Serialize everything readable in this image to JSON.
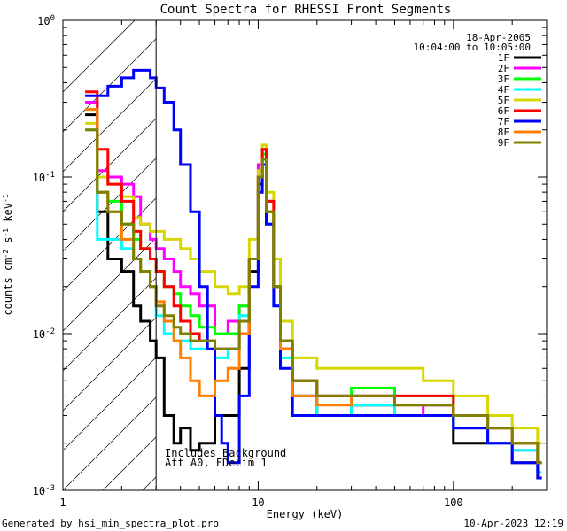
{
  "chart_data": {
    "type": "line",
    "title": "Count Spectra for RHESSI Front Segments",
    "xlabel": "Energy (keV)",
    "ylabel": "counts cm^-2 s^-1 keV^-1",
    "ylabel_parts": {
      "base": "counts cm",
      "exp1": "-2",
      "mid": " s",
      "exp2": "-1",
      "unit": " keV",
      "exp3": "-1"
    },
    "x_scale": "log",
    "y_scale": "log",
    "xlim": [
      1,
      300
    ],
    "ylim": [
      0.001,
      1
    ],
    "x_ticks": [
      {
        "value": 1,
        "label": "1"
      },
      {
        "value": 10,
        "label": "10"
      },
      {
        "value": 100,
        "label": "100"
      }
    ],
    "y_ticks": [
      {
        "value": 1,
        "base": "10",
        "exp": "0"
      },
      {
        "value": 0.1,
        "base": "10",
        "exp": "-1"
      },
      {
        "value": 0.01,
        "base": "10",
        "exp": "-2"
      },
      {
        "value": 0.001,
        "base": "10",
        "exp": "-3"
      }
    ],
    "legend_position": "top-right",
    "date": "18-Apr-2005",
    "time_range": "10:04:00 to 10:05:00",
    "hatched_region_xmax": 3,
    "annotations": [
      "Includes Background",
      "Att A0, FDecim 1"
    ],
    "series": [
      {
        "name": "1F",
        "color": "#000000",
        "points": [
          [
            1.3,
            0.25
          ],
          [
            1.5,
            0.06
          ],
          [
            1.7,
            0.03
          ],
          [
            2.0,
            0.025
          ],
          [
            2.3,
            0.015
          ],
          [
            2.5,
            0.012
          ],
          [
            2.8,
            0.009
          ],
          [
            3.0,
            0.007
          ],
          [
            3.3,
            0.003
          ],
          [
            3.7,
            0.002
          ],
          [
            4.0,
            0.0025
          ],
          [
            4.5,
            0.0018
          ],
          [
            5.0,
            0.002
          ],
          [
            6.0,
            0.003
          ],
          [
            7.0,
            0.003
          ],
          [
            8.0,
            0.006
          ],
          [
            9.0,
            0.025
          ],
          [
            10.0,
            0.09
          ],
          [
            10.5,
            0.12
          ],
          [
            11.0,
            0.06
          ],
          [
            12.0,
            0.02
          ],
          [
            13.0,
            0.008
          ],
          [
            15.0,
            0.004
          ],
          [
            20.0,
            0.003
          ],
          [
            30.0,
            0.0035
          ],
          [
            50.0,
            0.003
          ],
          [
            70.0,
            0.003
          ],
          [
            100.0,
            0.002
          ],
          [
            150.0,
            0.002
          ],
          [
            200.0,
            0.0015
          ],
          [
            270.0,
            0.0012
          ]
        ]
      },
      {
        "name": "2F",
        "color": "#ff00ff",
        "points": [
          [
            1.3,
            0.3
          ],
          [
            1.5,
            0.11
          ],
          [
            1.7,
            0.1
          ],
          [
            2.0,
            0.09
          ],
          [
            2.3,
            0.075
          ],
          [
            2.5,
            0.05
          ],
          [
            2.8,
            0.04
          ],
          [
            3.0,
            0.035
          ],
          [
            3.3,
            0.03
          ],
          [
            3.7,
            0.025
          ],
          [
            4.0,
            0.02
          ],
          [
            4.5,
            0.018
          ],
          [
            5.0,
            0.015
          ],
          [
            6.0,
            0.01
          ],
          [
            7.0,
            0.012
          ],
          [
            8.0,
            0.015
          ],
          [
            9.0,
            0.03
          ],
          [
            10.0,
            0.12
          ],
          [
            10.5,
            0.15
          ],
          [
            11.0,
            0.07
          ],
          [
            12.0,
            0.02
          ],
          [
            13.0,
            0.009
          ],
          [
            15.0,
            0.005
          ],
          [
            20.0,
            0.004
          ],
          [
            30.0,
            0.004
          ],
          [
            50.0,
            0.003
          ],
          [
            70.0,
            0.0035
          ],
          [
            100.0,
            0.0025
          ],
          [
            150.0,
            0.002
          ],
          [
            200.0,
            0.0018
          ],
          [
            270.0,
            0.0015
          ]
        ]
      },
      {
        "name": "3F",
        "color": "#00ff00",
        "points": [
          [
            1.3,
            0.27
          ],
          [
            1.5,
            0.08
          ],
          [
            1.7,
            0.07
          ],
          [
            2.0,
            0.05
          ],
          [
            2.3,
            0.04
          ],
          [
            2.5,
            0.035
          ],
          [
            2.8,
            0.03
          ],
          [
            3.0,
            0.025
          ],
          [
            3.3,
            0.02
          ],
          [
            3.7,
            0.018
          ],
          [
            4.0,
            0.015
          ],
          [
            4.5,
            0.013
          ],
          [
            5.0,
            0.011
          ],
          [
            6.0,
            0.01
          ],
          [
            7.0,
            0.01
          ],
          [
            8.0,
            0.015
          ],
          [
            9.0,
            0.03
          ],
          [
            10.0,
            0.1
          ],
          [
            10.5,
            0.14
          ],
          [
            11.0,
            0.06
          ],
          [
            12.0,
            0.02
          ],
          [
            13.0,
            0.009
          ],
          [
            15.0,
            0.005
          ],
          [
            20.0,
            0.004
          ],
          [
            30.0,
            0.0045
          ],
          [
            50.0,
            0.004
          ],
          [
            70.0,
            0.004
          ],
          [
            100.0,
            0.003
          ],
          [
            150.0,
            0.0025
          ],
          [
            200.0,
            0.002
          ],
          [
            270.0,
            0.0015
          ]
        ]
      },
      {
        "name": "4F",
        "color": "#00ffff",
        "points": [
          [
            1.3,
            0.2
          ],
          [
            1.5,
            0.04
          ],
          [
            1.7,
            0.04
          ],
          [
            2.0,
            0.035
          ],
          [
            2.3,
            0.03
          ],
          [
            2.5,
            0.025
          ],
          [
            2.8,
            0.02
          ],
          [
            3.0,
            0.013
          ],
          [
            3.3,
            0.01
          ],
          [
            3.7,
            0.009
          ],
          [
            4.0,
            0.009
          ],
          [
            4.5,
            0.008
          ],
          [
            5.0,
            0.008
          ],
          [
            6.0,
            0.007
          ],
          [
            7.0,
            0.008
          ],
          [
            8.0,
            0.013
          ],
          [
            9.0,
            0.03
          ],
          [
            10.0,
            0.1
          ],
          [
            10.5,
            0.13
          ],
          [
            11.0,
            0.05
          ],
          [
            12.0,
            0.015
          ],
          [
            13.0,
            0.007
          ],
          [
            15.0,
            0.004
          ],
          [
            20.0,
            0.003
          ],
          [
            30.0,
            0.0035
          ],
          [
            50.0,
            0.003
          ],
          [
            70.0,
            0.003
          ],
          [
            100.0,
            0.0025
          ],
          [
            150.0,
            0.002
          ],
          [
            200.0,
            0.0018
          ],
          [
            270.0,
            0.0013
          ]
        ]
      },
      {
        "name": "5F",
        "color": "#d7d700",
        "points": [
          [
            1.3,
            0.22
          ],
          [
            1.5,
            0.1
          ],
          [
            1.7,
            0.09
          ],
          [
            2.0,
            0.075
          ],
          [
            2.3,
            0.055
          ],
          [
            2.5,
            0.05
          ],
          [
            2.8,
            0.045
          ],
          [
            3.0,
            0.045
          ],
          [
            3.3,
            0.04
          ],
          [
            3.7,
            0.04
          ],
          [
            4.0,
            0.035
          ],
          [
            4.5,
            0.03
          ],
          [
            5.0,
            0.025
          ],
          [
            6.0,
            0.02
          ],
          [
            7.0,
            0.018
          ],
          [
            8.0,
            0.02
          ],
          [
            9.0,
            0.04
          ],
          [
            10.0,
            0.11
          ],
          [
            10.5,
            0.16
          ],
          [
            11.0,
            0.08
          ],
          [
            12.0,
            0.03
          ],
          [
            13.0,
            0.012
          ],
          [
            15.0,
            0.007
          ],
          [
            20.0,
            0.006
          ],
          [
            30.0,
            0.006
          ],
          [
            50.0,
            0.006
          ],
          [
            70.0,
            0.005
          ],
          [
            100.0,
            0.004
          ],
          [
            150.0,
            0.003
          ],
          [
            200.0,
            0.0025
          ],
          [
            270.0,
            0.002
          ]
        ]
      },
      {
        "name": "6F",
        "color": "#ff0000",
        "points": [
          [
            1.3,
            0.35
          ],
          [
            1.5,
            0.15
          ],
          [
            1.7,
            0.09
          ],
          [
            2.0,
            0.07
          ],
          [
            2.3,
            0.045
          ],
          [
            2.5,
            0.035
          ],
          [
            2.8,
            0.03
          ],
          [
            3.0,
            0.025
          ],
          [
            3.3,
            0.02
          ],
          [
            3.7,
            0.015
          ],
          [
            4.0,
            0.012
          ],
          [
            4.5,
            0.01
          ],
          [
            5.0,
            0.009
          ],
          [
            6.0,
            0.008
          ],
          [
            7.0,
            0.008
          ],
          [
            8.0,
            0.012
          ],
          [
            9.0,
            0.03
          ],
          [
            10.0,
            0.1
          ],
          [
            10.5,
            0.15
          ],
          [
            11.0,
            0.07
          ],
          [
            12.0,
            0.02
          ],
          [
            13.0,
            0.008
          ],
          [
            15.0,
            0.005
          ],
          [
            20.0,
            0.004
          ],
          [
            30.0,
            0.004
          ],
          [
            50.0,
            0.004
          ],
          [
            70.0,
            0.004
          ],
          [
            100.0,
            0.003
          ],
          [
            150.0,
            0.0025
          ],
          [
            200.0,
            0.002
          ],
          [
            270.0,
            0.0015
          ]
        ]
      },
      {
        "name": "7F",
        "color": "#0000ff",
        "points": [
          [
            1.3,
            0.33
          ],
          [
            1.5,
            0.33
          ],
          [
            1.7,
            0.38
          ],
          [
            2.0,
            0.43
          ],
          [
            2.3,
            0.48
          ],
          [
            2.5,
            0.48
          ],
          [
            2.8,
            0.43
          ],
          [
            3.0,
            0.37
          ],
          [
            3.3,
            0.3
          ],
          [
            3.7,
            0.2
          ],
          [
            4.0,
            0.12
          ],
          [
            4.5,
            0.06
          ],
          [
            5.0,
            0.02
          ],
          [
            5.5,
            0.008
          ],
          [
            6.0,
            0.003
          ],
          [
            6.5,
            0.002
          ],
          [
            7.0,
            0.0015
          ],
          [
            8.0,
            0.004
          ],
          [
            9.0,
            0.02
          ],
          [
            10.0,
            0.08
          ],
          [
            10.5,
            0.12
          ],
          [
            11.0,
            0.05
          ],
          [
            12.0,
            0.015
          ],
          [
            13.0,
            0.006
          ],
          [
            15.0,
            0.003
          ],
          [
            20.0,
            0.003
          ],
          [
            30.0,
            0.003
          ],
          [
            50.0,
            0.003
          ],
          [
            70.0,
            0.003
          ],
          [
            100.0,
            0.0025
          ],
          [
            150.0,
            0.002
          ],
          [
            200.0,
            0.0015
          ],
          [
            270.0,
            0.0012
          ]
        ]
      },
      {
        "name": "8F",
        "color": "#ff7f00",
        "points": [
          [
            1.3,
            0.27
          ],
          [
            1.5,
            0.08
          ],
          [
            1.7,
            0.06
          ],
          [
            2.0,
            0.04
          ],
          [
            2.3,
            0.03
          ],
          [
            2.5,
            0.025
          ],
          [
            2.8,
            0.02
          ],
          [
            3.0,
            0.016
          ],
          [
            3.3,
            0.012
          ],
          [
            3.7,
            0.009
          ],
          [
            4.0,
            0.007
          ],
          [
            4.5,
            0.005
          ],
          [
            5.0,
            0.004
          ],
          [
            6.0,
            0.005
          ],
          [
            7.0,
            0.006
          ],
          [
            8.0,
            0.01
          ],
          [
            9.0,
            0.03
          ],
          [
            10.0,
            0.1
          ],
          [
            10.5,
            0.13
          ],
          [
            11.0,
            0.06
          ],
          [
            12.0,
            0.02
          ],
          [
            13.0,
            0.008
          ],
          [
            15.0,
            0.004
          ],
          [
            20.0,
            0.0035
          ],
          [
            30.0,
            0.004
          ],
          [
            50.0,
            0.0035
          ],
          [
            70.0,
            0.0035
          ],
          [
            100.0,
            0.003
          ],
          [
            150.0,
            0.0025
          ],
          [
            200.0,
            0.002
          ],
          [
            270.0,
            0.0015
          ]
        ]
      },
      {
        "name": "9F",
        "color": "#7f7f00",
        "points": [
          [
            1.3,
            0.2
          ],
          [
            1.5,
            0.08
          ],
          [
            1.7,
            0.06
          ],
          [
            2.0,
            0.05
          ],
          [
            2.3,
            0.03
          ],
          [
            2.5,
            0.025
          ],
          [
            2.8,
            0.02
          ],
          [
            3.0,
            0.015
          ],
          [
            3.3,
            0.013
          ],
          [
            3.7,
            0.011
          ],
          [
            4.0,
            0.01
          ],
          [
            4.5,
            0.009
          ],
          [
            5.0,
            0.009
          ],
          [
            6.0,
            0.008
          ],
          [
            7.0,
            0.008
          ],
          [
            8.0,
            0.012
          ],
          [
            9.0,
            0.03
          ],
          [
            10.0,
            0.1
          ],
          [
            10.5,
            0.13
          ],
          [
            11.0,
            0.06
          ],
          [
            12.0,
            0.02
          ],
          [
            13.0,
            0.009
          ],
          [
            15.0,
            0.005
          ],
          [
            20.0,
            0.004
          ],
          [
            30.0,
            0.004
          ],
          [
            50.0,
            0.0035
          ],
          [
            70.0,
            0.0035
          ],
          [
            100.0,
            0.003
          ],
          [
            150.0,
            0.0025
          ],
          [
            200.0,
            0.002
          ],
          [
            270.0,
            0.0015
          ]
        ]
      }
    ]
  },
  "footer": {
    "generated_by": "Generated by hsi_min_spectra_plot.pro",
    "timestamp": "10-Apr-2023 12:19"
  }
}
